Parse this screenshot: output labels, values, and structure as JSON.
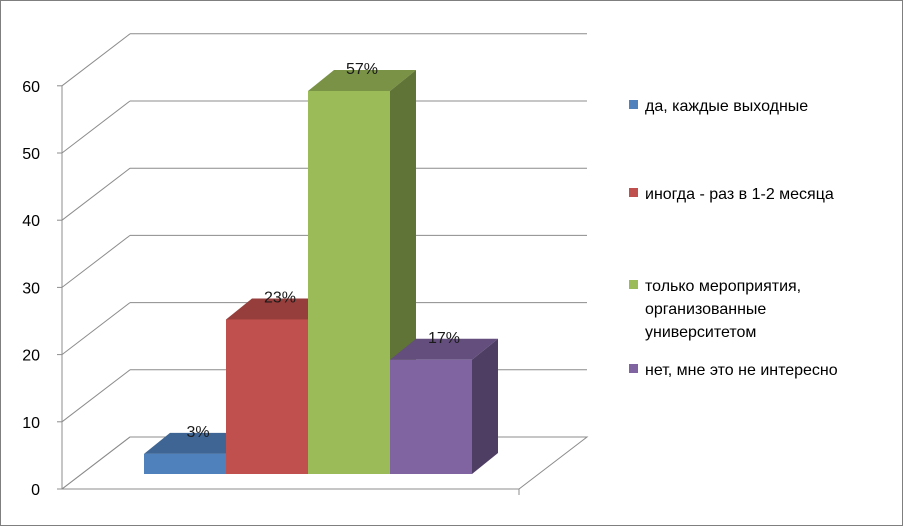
{
  "chart_data": {
    "type": "bar",
    "style": "3d-column",
    "title": "",
    "xlabel": "",
    "ylabel": "",
    "ylim": [
      0,
      60
    ],
    "yticks": [
      "0",
      "10",
      "20",
      "30",
      "40",
      "50",
      "60"
    ],
    "grid": true,
    "legend_position": "right",
    "series": [
      {
        "name": "да, каждые выходные",
        "value": 3,
        "label": "3%",
        "color": "#4f81bd"
      },
      {
        "name": "иногда - раз в 1-2 месяца",
        "value": 23,
        "label": "23%",
        "color": "#c0504d"
      },
      {
        "name": "только мероприятия, организованные университетом",
        "name_lines": [
          "только мероприятия,",
          "организованные",
          "университетом"
        ],
        "value": 57,
        "label": "57%",
        "color": "#9bbb59"
      },
      {
        "name": "нет, мне это не интересно",
        "value": 17,
        "label": "17%",
        "color": "#8064a2"
      }
    ]
  }
}
